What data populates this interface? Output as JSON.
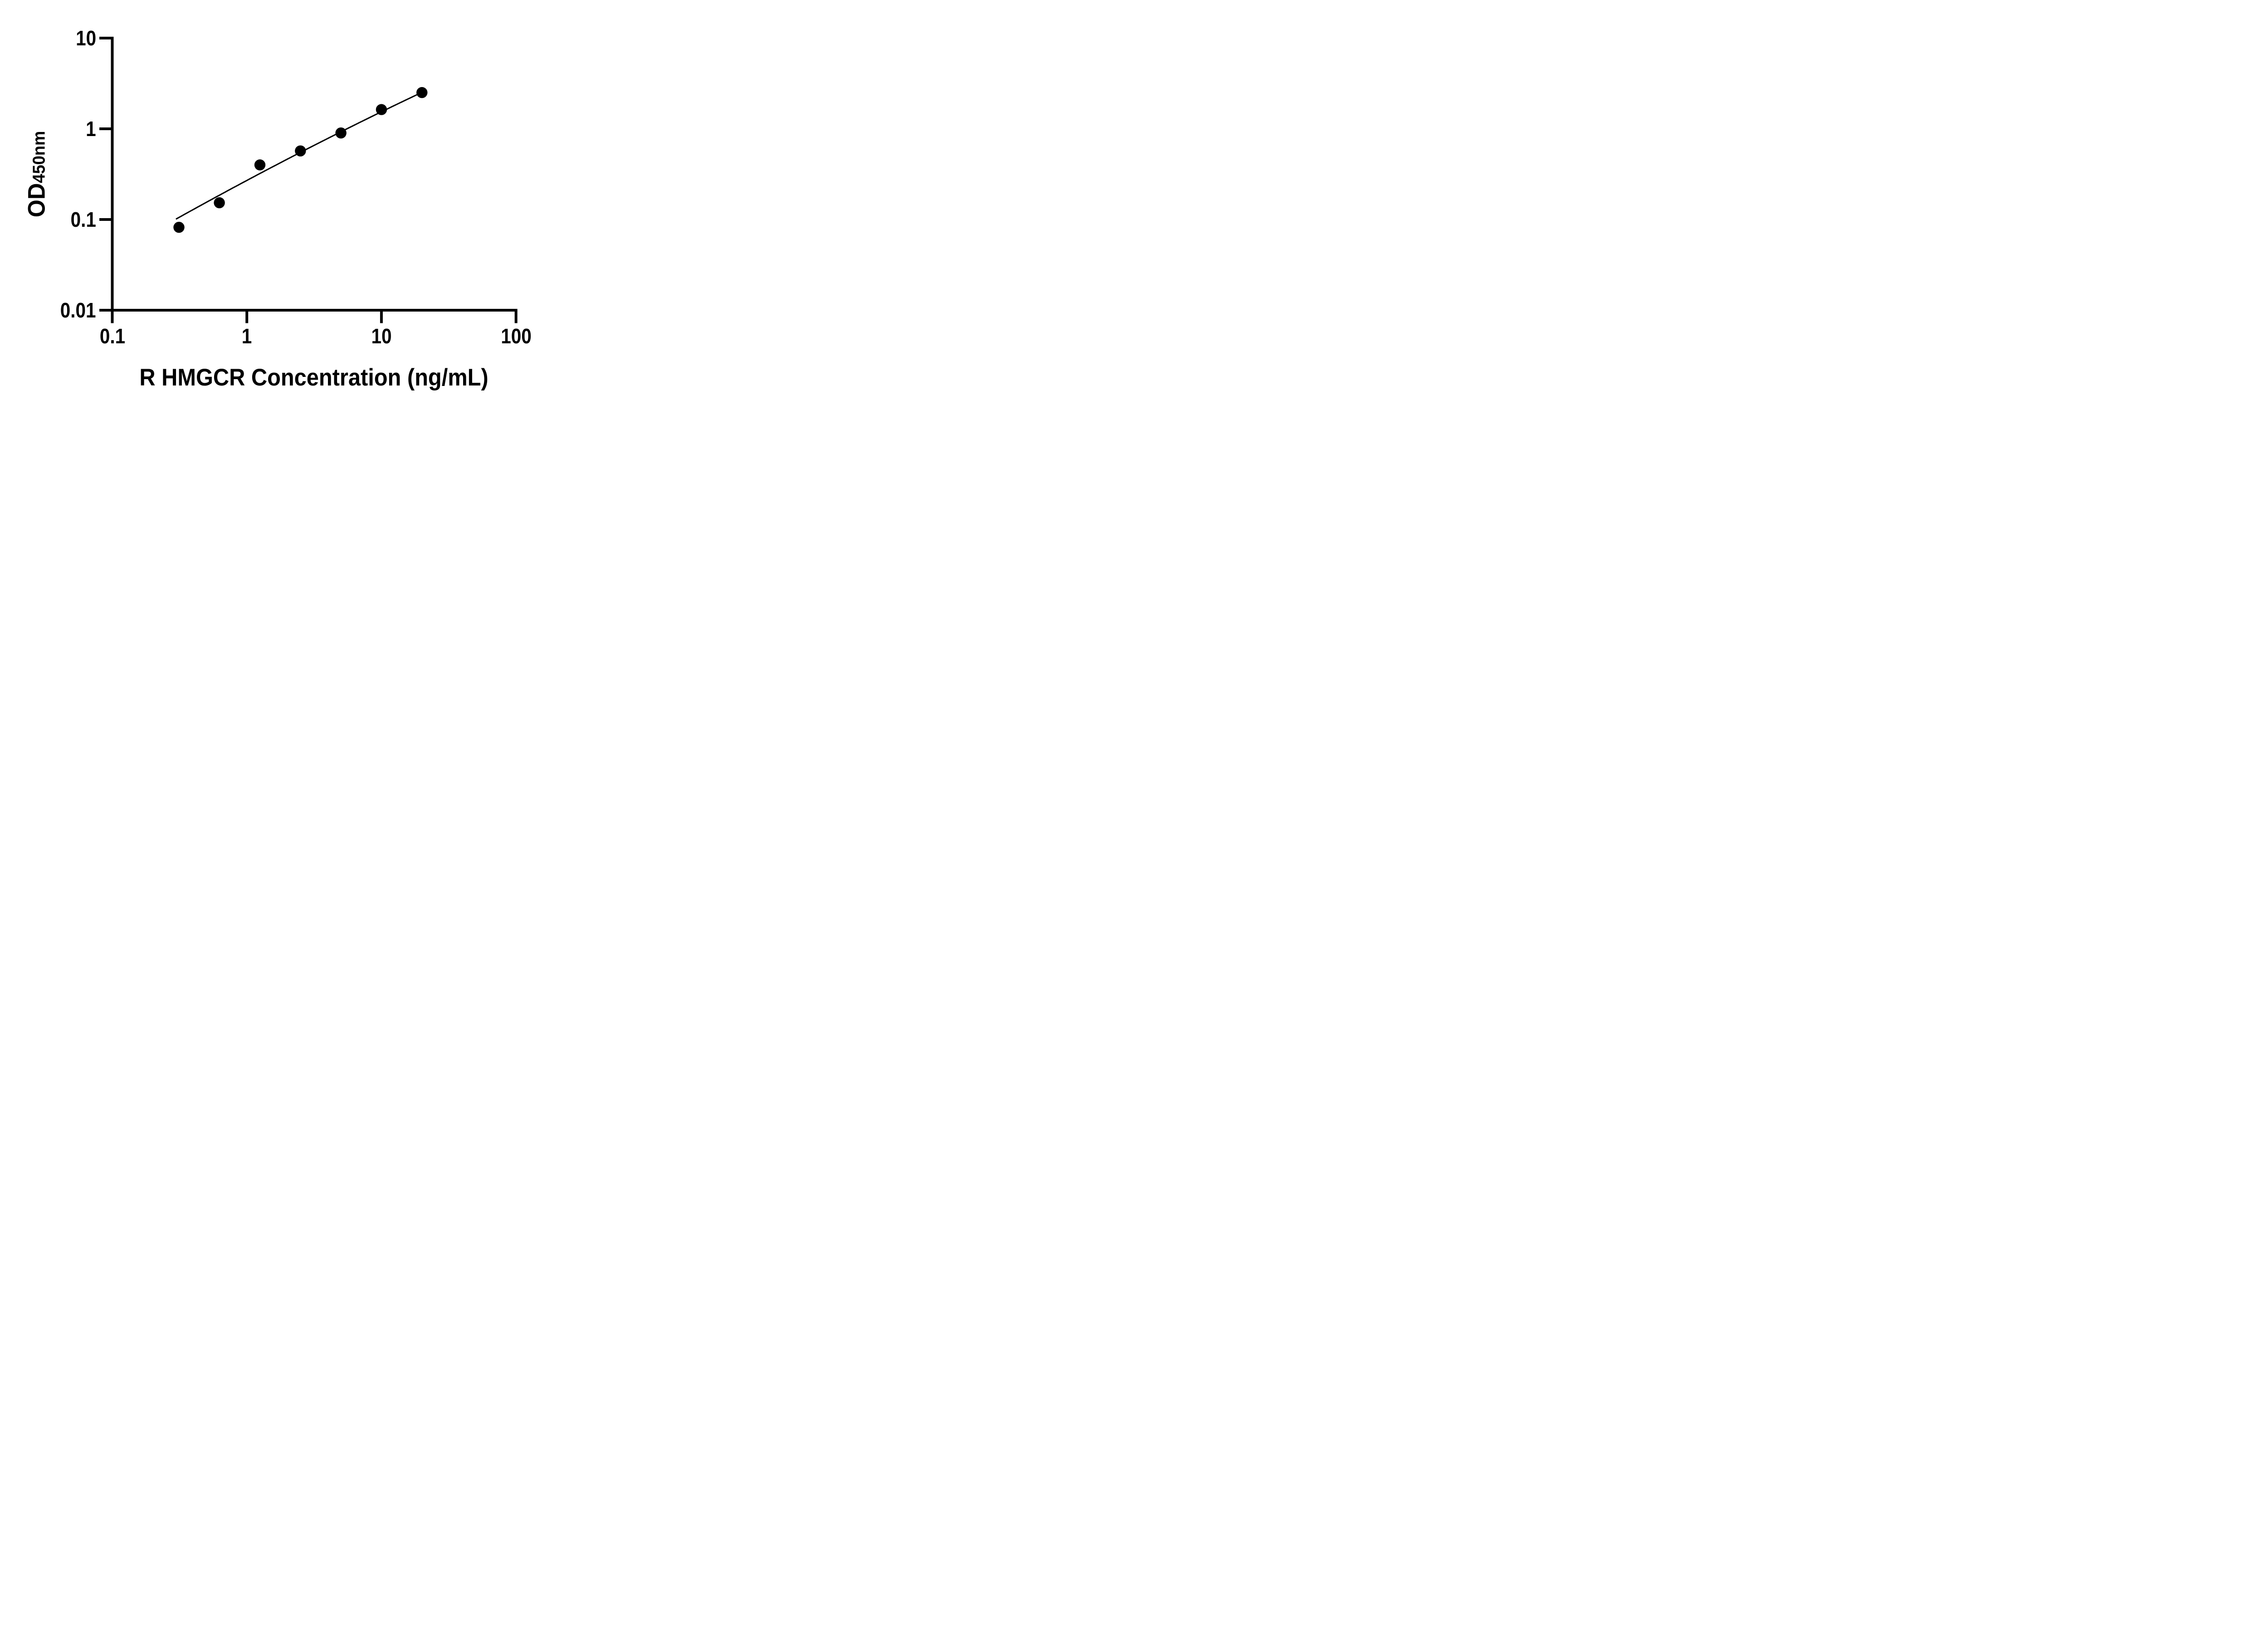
{
  "chart_data": {
    "type": "scatter",
    "title": "",
    "xlabel": "R HMGCR Concentration (ng/mL)",
    "ylabel_main": "OD",
    "ylabel_sub": "450nm",
    "x_scale": "log",
    "y_scale": "log",
    "xlim": [
      0.1,
      100
    ],
    "ylim": [
      0.01,
      10
    ],
    "x_ticks": [
      0.1,
      1,
      10,
      100
    ],
    "x_tick_labels": [
      "0.1",
      "1",
      "10",
      "100"
    ],
    "y_ticks": [
      0.01,
      0.1,
      1,
      10
    ],
    "y_tick_labels": [
      "0.01",
      "0.1",
      "1",
      "10"
    ],
    "grid": false,
    "legend": "none",
    "series": [
      {
        "name": "standard-curve-points",
        "marker": "filled-circle",
        "color": "#000000",
        "x": [
          0.313,
          0.625,
          1.25,
          2.5,
          5,
          10,
          20
        ],
        "y": [
          0.082,
          0.153,
          0.4,
          0.57,
          0.9,
          1.63,
          2.51
        ]
      }
    ],
    "fit_curve": {
      "type": "quadratic-in-loglog",
      "description": "v = a + b*u + c*u^2 with u=log10(conc), v=log10(OD)",
      "a": -0.5694,
      "b": 0.7911,
      "c": -0.0342,
      "u_start": -0.523,
      "u_end": 1.301,
      "color": "#000000"
    },
    "colors": {
      "foreground": "#000000",
      "background": "#ffffff"
    }
  }
}
